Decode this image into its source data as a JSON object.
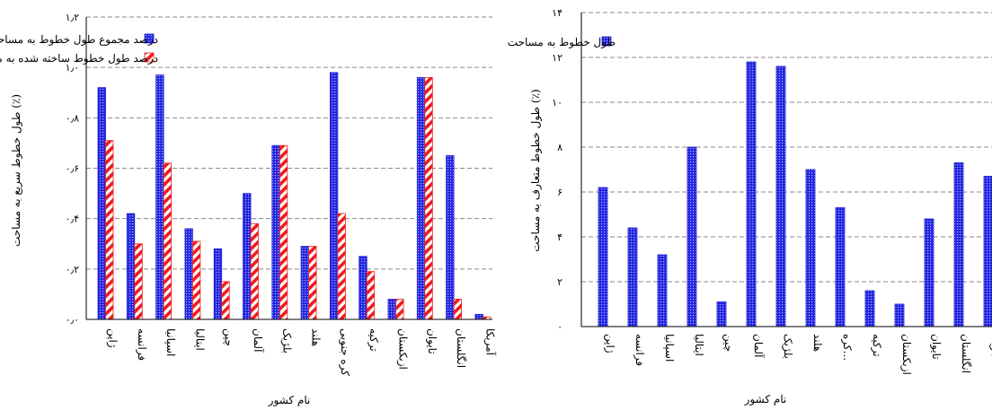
{
  "chart_data": [
    {
      "type": "bar",
      "ylabel": "طول خطوط سریع به مساحت (٪)",
      "xlabel": "نام کشور",
      "ylim": [
        0,
        1.2
      ],
      "yticks": [
        "۰٫۰",
        "۰٫۲",
        "۰٫۴",
        "۰٫۶",
        "۰٫۸",
        "۱٫۰",
        "۱٫۲"
      ],
      "grid": true,
      "legend_position": "top",
      "categories": [
        "ژاپن",
        "فرانسه",
        "اسپانیا",
        "ایتالیا",
        "چین",
        "آلمان",
        "بلژیک",
        "هلند",
        "کره جنوبی",
        "ترکیه",
        "ازبکستان",
        "تایوان",
        "انگلستان",
        "آمریکا"
      ],
      "series": [
        {
          "name": "درصد مجموع طول خطوط به مساحت",
          "color": "#1f1fd6",
          "pattern": "dots",
          "values": [
            0.92,
            0.42,
            0.97,
            0.36,
            0.28,
            0.5,
            0.69,
            0.29,
            0.98,
            0.25,
            0.08,
            0.96,
            0.65,
            0.02
          ]
        },
        {
          "name": "درصد طول خطوط ساخته شده به مساحت",
          "color": "#ee1c1c",
          "pattern": "diagonal",
          "values": [
            0.71,
            0.3,
            0.62,
            0.31,
            0.15,
            0.38,
            0.69,
            0.29,
            0.42,
            0.19,
            0.08,
            0.96,
            0.08,
            0.01
          ]
        }
      ]
    },
    {
      "type": "bar",
      "ylabel": "طول خطوط متعارف به مساحت (٪)",
      "xlabel": "نام کشور",
      "ylim": [
        0,
        14
      ],
      "yticks": [
        "۰",
        "۲",
        "۴",
        "۶",
        "۸",
        "۱۰",
        "۱۲",
        "۱۴"
      ],
      "grid": true,
      "legend_position": "top-left",
      "categories": [
        "ژاپن",
        "فرانسه",
        "اسپانیا",
        "ایتالیا",
        "چین",
        "آلمان",
        "بلژیک",
        "هلند",
        "کره...",
        "ترکیه",
        "ازبکستان",
        "تایوان",
        "انگلستان",
        "آمریکا"
      ],
      "series": [
        {
          "name": "طول خطوط  به مساحت",
          "color": "#1f1fd6",
          "pattern": "dots",
          "values": [
            6.2,
            4.4,
            3.2,
            8.0,
            1.1,
            11.8,
            11.6,
            7.0,
            5.3,
            1.6,
            1.0,
            4.8,
            7.3,
            6.7
          ]
        }
      ]
    }
  ]
}
